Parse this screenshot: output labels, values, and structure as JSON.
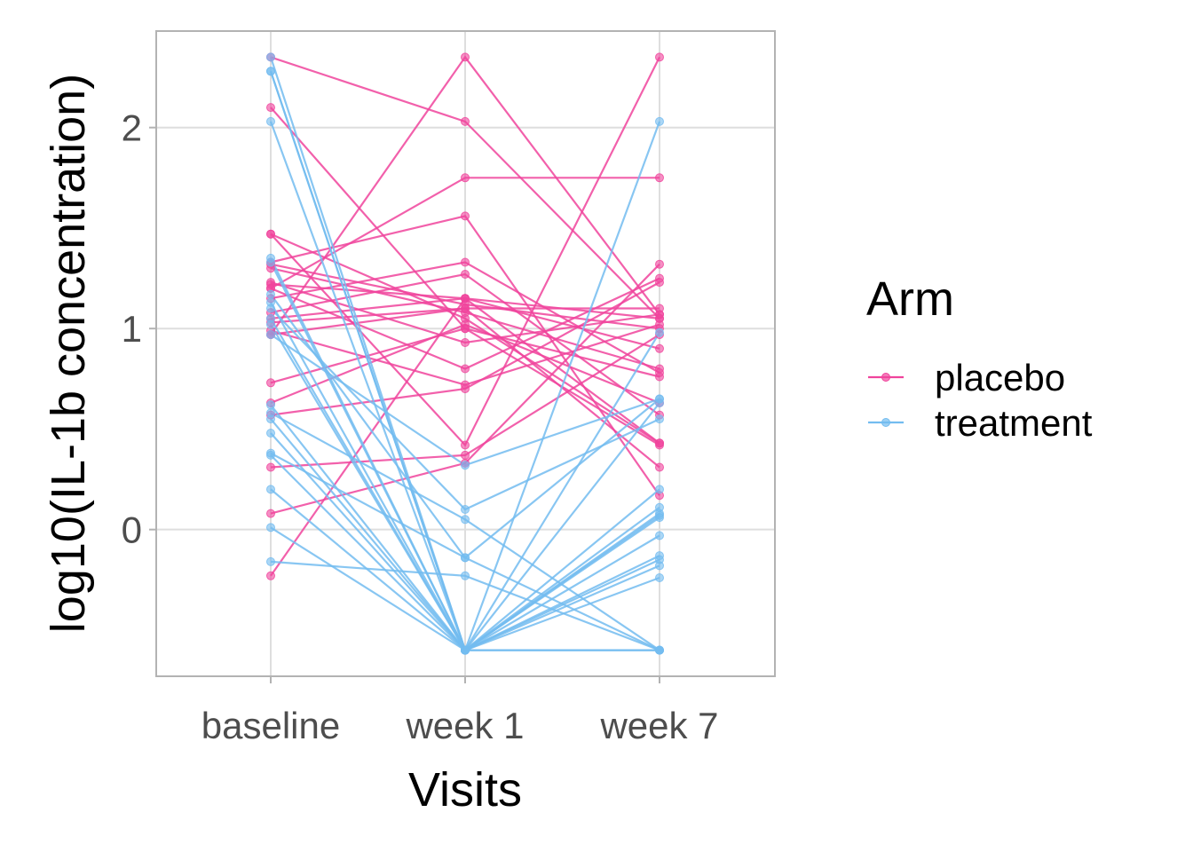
{
  "chart_data": {
    "type": "line",
    "title": "",
    "xlabel": "Visits",
    "ylabel": "log10(IL-1b concentration)",
    "categories": [
      "baseline",
      "week 1",
      "week 7"
    ],
    "ylim": [
      -0.73,
      2.48
    ],
    "yticks": [
      0,
      1,
      2
    ],
    "grid": true,
    "legend": {
      "title": "Arm",
      "position": "right"
    },
    "series": [
      {
        "name": "placebo",
        "color": "#f0449c",
        "subjects": [
          [
            2.35,
            2.03,
            1.05
          ],
          [
            2.1,
            1.0,
            0.42
          ],
          [
            1.47,
            0.42,
            2.35
          ],
          [
            1.47,
            1.05,
            0.43
          ],
          [
            1.33,
            1.56,
            0.17
          ],
          [
            1.32,
            1.12,
            1.0
          ],
          [
            1.3,
            1.08,
            0.8
          ],
          [
            1.23,
            0.93,
            1.07
          ],
          [
            1.22,
            1.15,
            0.9
          ],
          [
            1.2,
            0.8,
            1.25
          ],
          [
            1.2,
            1.75,
            1.75
          ],
          [
            1.15,
            1.33,
            0.78
          ],
          [
            1.08,
            1.27,
            0.57
          ],
          [
            1.05,
            1.15,
            1.05
          ],
          [
            1.03,
            1.1,
            0.31
          ],
          [
            0.99,
            0.72,
            1.02
          ],
          [
            0.97,
            1.1,
            1.1
          ],
          [
            0.97,
            2.35,
            1.07
          ],
          [
            0.73,
            1.0,
            0.76
          ],
          [
            0.63,
            1.02,
            0.63
          ],
          [
            0.57,
            0.7,
            1.23
          ],
          [
            0.31,
            0.37,
            0.97
          ],
          [
            0.08,
            0.33,
            1.32
          ],
          [
            -0.23,
            1.15,
            0.43
          ]
        ]
      },
      {
        "name": "treatment",
        "color": "#73bcf0",
        "subjects": [
          [
            2.35,
            -0.6,
            -0.6
          ],
          [
            2.28,
            -0.6,
            -0.13
          ],
          [
            2.28,
            -0.6,
            0.63
          ],
          [
            2.03,
            -0.6,
            2.03
          ],
          [
            1.35,
            -0.6,
            0.08
          ],
          [
            1.33,
            -0.6,
            -0.6
          ],
          [
            1.17,
            -0.14,
            0.65
          ],
          [
            1.13,
            -0.6,
            -0.18
          ],
          [
            1.1,
            0.1,
            0.55
          ],
          [
            1.05,
            -0.6,
            0.98
          ],
          [
            1.02,
            -0.6,
            0.07
          ],
          [
            0.97,
            0.32,
            0.65
          ],
          [
            0.62,
            -0.6,
            -0.03
          ],
          [
            0.58,
            0.05,
            -0.6
          ],
          [
            0.55,
            -0.6,
            0.2
          ],
          [
            0.48,
            -0.6,
            -0.15
          ],
          [
            0.38,
            -0.14,
            -0.6
          ],
          [
            0.37,
            -0.6,
            0.11
          ],
          [
            0.2,
            -0.6,
            -0.24
          ],
          [
            0.01,
            -0.6,
            0.06
          ],
          [
            -0.16,
            -0.23,
            -0.6
          ]
        ]
      }
    ]
  }
}
